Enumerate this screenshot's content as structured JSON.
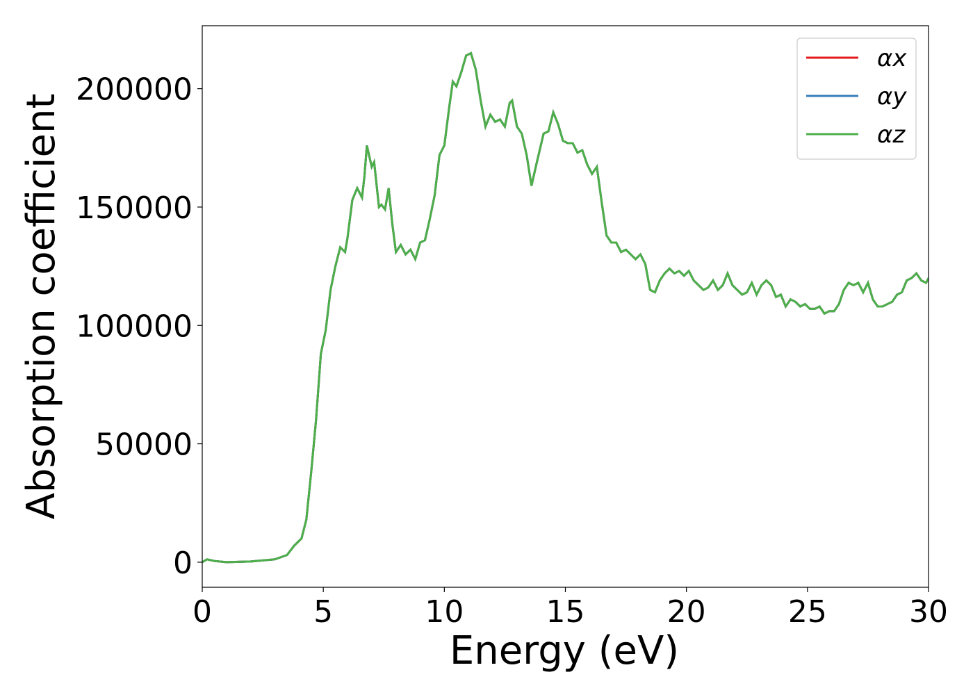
{
  "chart_data": {
    "type": "line",
    "xlabel": "Energy (eV)",
    "ylabel": "Absorption coefficient",
    "xlim": [
      0,
      30
    ],
    "ylim": [
      -10600,
      226600
    ],
    "xticks": [
      0,
      5,
      10,
      15,
      20,
      25,
      30
    ],
    "yticks": [
      0,
      50000,
      100000,
      150000,
      200000
    ],
    "legend": "upper right",
    "x": [
      0,
      0.2,
      0.5,
      1,
      2,
      3,
      3.5,
      3.8,
      4.1,
      4.3,
      4.5,
      4.7,
      4.9,
      5.1,
      5.3,
      5.5,
      5.7,
      5.9,
      6.0,
      6.2,
      6.4,
      6.6,
      6.7,
      6.8,
      7.0,
      7.1,
      7.3,
      7.4,
      7.55,
      7.7,
      7.85,
      8.0,
      8.2,
      8.4,
      8.6,
      8.8,
      9.0,
      9.2,
      9.4,
      9.6,
      9.8,
      10.0,
      10.2,
      10.35,
      10.5,
      10.7,
      10.9,
      11.1,
      11.3,
      11.5,
      11.7,
      11.9,
      12.1,
      12.3,
      12.5,
      12.7,
      12.8,
      13.0,
      13.2,
      13.4,
      13.6,
      13.8,
      14.1,
      14.3,
      14.5,
      14.7,
      14.9,
      15.1,
      15.3,
      15.5,
      15.7,
      15.9,
      16.1,
      16.3,
      16.5,
      16.7,
      16.9,
      17.1,
      17.3,
      17.5,
      17.7,
      17.9,
      18.1,
      18.3,
      18.5,
      18.7,
      18.9,
      19.1,
      19.3,
      19.5,
      19.7,
      19.9,
      20.1,
      20.3,
      20.5,
      20.7,
      20.9,
      21.1,
      21.3,
      21.5,
      21.7,
      21.9,
      22.1,
      22.3,
      22.5,
      22.7,
      22.9,
      23.1,
      23.3,
      23.5,
      23.7,
      23.9,
      24.1,
      24.3,
      24.5,
      24.7,
      24.9,
      25.1,
      25.3,
      25.5,
      25.7,
      25.9,
      26.1,
      26.3,
      26.5,
      26.7,
      26.9,
      27.1,
      27.3,
      27.5,
      27.7,
      27.9,
      28.1,
      28.3,
      28.5,
      28.7,
      28.9,
      29.1,
      29.3,
      29.5,
      29.7,
      29.9,
      30
    ],
    "series": [
      {
        "name": "αx",
        "color": "#e41a1c",
        "values": [
          0,
          1200,
          500,
          0,
          300,
          1200,
          3000,
          7000,
          10000,
          18000,
          38000,
          60000,
          88000,
          98000,
          115000,
          125000,
          133000,
          131000,
          137000,
          153000,
          158000,
          154000,
          163000,
          176000,
          167000,
          169000,
          150000,
          151000,
          149000,
          158000,
          143000,
          131000,
          134000,
          130000,
          132000,
          128000,
          135000,
          136000,
          145000,
          155000,
          172000,
          176000,
          192000,
          203000,
          201000,
          207000,
          214000,
          215000,
          208000,
          195000,
          184000,
          189000,
          186000,
          187000,
          184000,
          194000,
          195000,
          184000,
          181000,
          172000,
          159000,
          168000,
          181000,
          182000,
          190000,
          185000,
          178000,
          177000,
          177000,
          173000,
          174000,
          168000,
          164000,
          167000,
          152000,
          138000,
          135000,
          135000,
          131000,
          132000,
          130000,
          128000,
          130000,
          126000,
          115000,
          114000,
          119000,
          122000,
          124000,
          122000,
          123000,
          121000,
          123000,
          119000,
          117000,
          115000,
          116000,
          119000,
          115000,
          117000,
          122000,
          117000,
          115000,
          113000,
          114000,
          118000,
          113000,
          117000,
          119000,
          117000,
          112000,
          113000,
          108000,
          111000,
          110000,
          108000,
          109000,
          107000,
          107000,
          108000,
          105000,
          106000,
          106000,
          109000,
          115000,
          118000,
          117000,
          118000,
          114000,
          118000,
          111000,
          108000,
          108000,
          109000,
          110000,
          113000,
          114000,
          119000,
          120000,
          122000,
          119000,
          118000,
          120000
        ]
      },
      {
        "name": "αy",
        "color": "#377eb8",
        "values": [
          0,
          1200,
          500,
          0,
          300,
          1200,
          3000,
          7000,
          10000,
          18000,
          38000,
          60000,
          88000,
          98000,
          115000,
          125000,
          133000,
          131000,
          137000,
          153000,
          158000,
          154000,
          163000,
          176000,
          167000,
          169000,
          150000,
          151000,
          149000,
          158000,
          143000,
          131000,
          134000,
          130000,
          132000,
          128000,
          135000,
          136000,
          145000,
          155000,
          172000,
          176000,
          192000,
          203000,
          201000,
          207000,
          214000,
          215000,
          208000,
          195000,
          184000,
          189000,
          186000,
          187000,
          184000,
          194000,
          195000,
          184000,
          181000,
          172000,
          159000,
          168000,
          181000,
          182000,
          190000,
          185000,
          178000,
          177000,
          177000,
          173000,
          174000,
          168000,
          164000,
          167000,
          152000,
          138000,
          135000,
          135000,
          131000,
          132000,
          130000,
          128000,
          130000,
          126000,
          115000,
          114000,
          119000,
          122000,
          124000,
          122000,
          123000,
          121000,
          123000,
          119000,
          117000,
          115000,
          116000,
          119000,
          115000,
          117000,
          122000,
          117000,
          115000,
          113000,
          114000,
          118000,
          113000,
          117000,
          119000,
          117000,
          112000,
          113000,
          108000,
          111000,
          110000,
          108000,
          109000,
          107000,
          107000,
          108000,
          105000,
          106000,
          106000,
          109000,
          115000,
          118000,
          117000,
          118000,
          114000,
          118000,
          111000,
          108000,
          108000,
          109000,
          110000,
          113000,
          114000,
          119000,
          120000,
          122000,
          119000,
          118000,
          120000
        ]
      },
      {
        "name": "αz",
        "color": "#4daf4a",
        "values": [
          0,
          1200,
          500,
          0,
          300,
          1200,
          3000,
          7000,
          10000,
          18000,
          38000,
          60000,
          88000,
          98000,
          115000,
          125000,
          133000,
          131000,
          137000,
          153000,
          158000,
          154000,
          163000,
          176000,
          167000,
          169000,
          150000,
          151000,
          149000,
          158000,
          143000,
          131000,
          134000,
          130000,
          132000,
          128000,
          135000,
          136000,
          145000,
          155000,
          172000,
          176000,
          192000,
          203000,
          201000,
          207000,
          214000,
          215000,
          208000,
          195000,
          184000,
          189000,
          186000,
          187000,
          184000,
          194000,
          195000,
          184000,
          181000,
          172000,
          159000,
          168000,
          181000,
          182000,
          190000,
          185000,
          178000,
          177000,
          177000,
          173000,
          174000,
          168000,
          164000,
          167000,
          152000,
          138000,
          135000,
          135000,
          131000,
          132000,
          130000,
          128000,
          130000,
          126000,
          115000,
          114000,
          119000,
          122000,
          124000,
          122000,
          123000,
          121000,
          123000,
          119000,
          117000,
          115000,
          116000,
          119000,
          115000,
          117000,
          122000,
          117000,
          115000,
          113000,
          114000,
          118000,
          113000,
          117000,
          119000,
          117000,
          112000,
          113000,
          108000,
          111000,
          110000,
          108000,
          109000,
          107000,
          107000,
          108000,
          105000,
          106000,
          106000,
          109000,
          115000,
          118000,
          117000,
          118000,
          114000,
          118000,
          111000,
          108000,
          108000,
          109000,
          110000,
          113000,
          114000,
          119000,
          120000,
          122000,
          119000,
          118000,
          120000
        ]
      }
    ]
  }
}
